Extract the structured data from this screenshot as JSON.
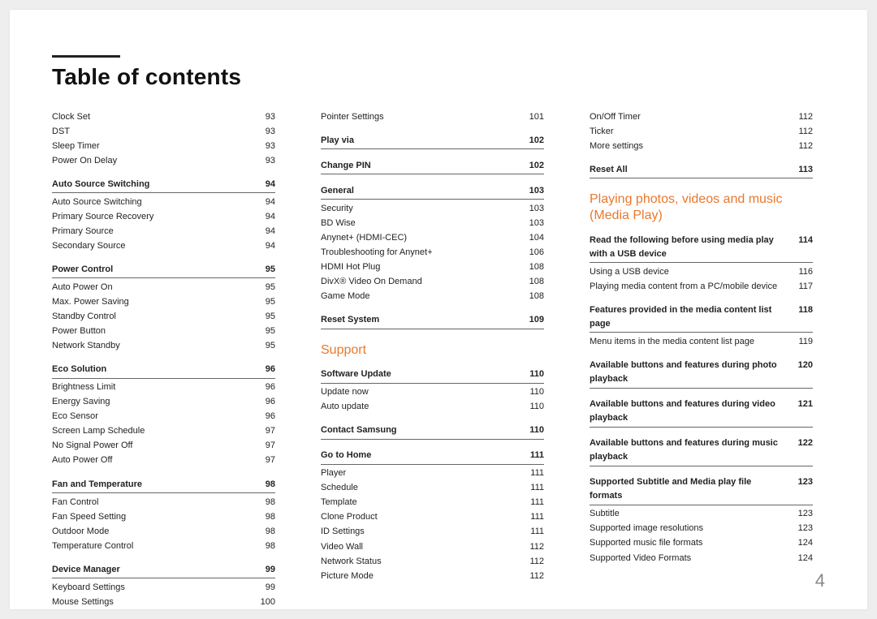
{
  "title": "Table of contents",
  "pageNumber": "4",
  "columns": {
    "col1": {
      "plainRows": [
        {
          "label": "Clock Set",
          "page": "93"
        },
        {
          "label": "DST",
          "page": "93"
        },
        {
          "label": "Sleep Timer",
          "page": "93"
        },
        {
          "label": "Power On Delay",
          "page": "93"
        }
      ],
      "groups": [
        {
          "head": "Auto Source Switching",
          "page": "94",
          "rows": [
            {
              "label": "Auto Source Switching",
              "page": "94"
            },
            {
              "label": "Primary Source Recovery",
              "page": "94"
            },
            {
              "label": "Primary Source",
              "page": "94"
            },
            {
              "label": "Secondary Source",
              "page": "94"
            }
          ]
        },
        {
          "head": "Power Control",
          "page": "95",
          "rows": [
            {
              "label": "Auto Power On",
              "page": "95"
            },
            {
              "label": "Max. Power Saving",
              "page": "95"
            },
            {
              "label": "Standby Control",
              "page": "95"
            },
            {
              "label": "Power Button",
              "page": "95"
            },
            {
              "label": "Network Standby",
              "page": "95"
            }
          ]
        },
        {
          "head": "Eco Solution",
          "page": "96",
          "rows": [
            {
              "label": "Brightness Limit",
              "page": "96"
            },
            {
              "label": "Energy Saving",
              "page": "96"
            },
            {
              "label": "Eco Sensor",
              "page": "96"
            },
            {
              "label": "Screen Lamp Schedule",
              "page": "97"
            },
            {
              "label": "No Signal Power Off",
              "page": "97"
            },
            {
              "label": "Auto Power Off",
              "page": "97"
            }
          ]
        },
        {
          "head": "Fan and Temperature",
          "page": "98",
          "rows": [
            {
              "label": "Fan Control",
              "page": "98"
            },
            {
              "label": "Fan Speed Setting",
              "page": "98"
            },
            {
              "label": "Outdoor Mode",
              "page": "98"
            },
            {
              "label": "Temperature Control",
              "page": "98"
            }
          ]
        },
        {
          "head": "Device Manager",
          "page": "99",
          "rows": [
            {
              "label": "Keyboard Settings",
              "page": "99"
            },
            {
              "label": "Mouse Settings",
              "page": "100"
            }
          ]
        }
      ]
    },
    "col2": {
      "plainRows": [
        {
          "label": "Pointer Settings",
          "page": "101"
        }
      ],
      "groups": [
        {
          "head": "Play via",
          "page": "102",
          "rows": []
        },
        {
          "head": "Change PIN",
          "page": "102",
          "rows": []
        },
        {
          "head": "General",
          "page": "103",
          "rows": [
            {
              "label": "Security",
              "page": "103"
            },
            {
              "label": "BD Wise",
              "page": "103"
            },
            {
              "label": "Anynet+ (HDMI-CEC)",
              "page": "104"
            },
            {
              "label": "Troubleshooting for Anynet+",
              "page": "106"
            },
            {
              "label": "HDMI Hot Plug",
              "page": "108"
            },
            {
              "label": "DivX® Video On Demand",
              "page": "108"
            },
            {
              "label": "Game Mode",
              "page": "108"
            }
          ]
        },
        {
          "head": "Reset System",
          "page": "109",
          "rows": []
        }
      ],
      "sectionTitle": "Support",
      "groups2": [
        {
          "head": "Software Update",
          "page": "110",
          "rows": [
            {
              "label": "Update now",
              "page": "110"
            },
            {
              "label": "Auto update",
              "page": "110"
            }
          ]
        },
        {
          "head": "Contact Samsung",
          "page": "110",
          "rows": []
        },
        {
          "head": "Go to Home",
          "page": "111",
          "rows": [
            {
              "label": "Player",
              "page": "111"
            },
            {
              "label": "Schedule",
              "page": "111"
            },
            {
              "label": "Template",
              "page": "111"
            },
            {
              "label": "Clone Product",
              "page": "111"
            },
            {
              "label": "ID Settings",
              "page": "111"
            },
            {
              "label": "Video Wall",
              "page": "112"
            },
            {
              "label": "Network Status",
              "page": "112"
            },
            {
              "label": "Picture Mode",
              "page": "112"
            }
          ]
        }
      ]
    },
    "col3": {
      "plainRows": [
        {
          "label": "On/Off Timer",
          "page": "112"
        },
        {
          "label": "Ticker",
          "page": "112"
        },
        {
          "label": "More settings",
          "page": "112"
        }
      ],
      "groups": [
        {
          "head": "Reset All",
          "page": "113",
          "rows": []
        }
      ],
      "sectionTitle": "Playing photos, videos and music (Media Play)",
      "groups2": [
        {
          "head": "Read the following before using media play with a USB device",
          "page": "114",
          "rows": [
            {
              "label": "Using a USB device",
              "page": "116"
            },
            {
              "label": "Playing media content from a PC/mobile device",
              "page": "117"
            }
          ]
        },
        {
          "head": "Features provided in the media content list page",
          "page": "118",
          "rows": [
            {
              "label": "Menu items in the media content list page",
              "page": "119"
            }
          ]
        },
        {
          "head": "Available buttons and features during photo playback",
          "page": "120",
          "rows": []
        },
        {
          "head": "Available buttons and features during video playback",
          "page": "121",
          "rows": []
        },
        {
          "head": "Available buttons and features during music playback",
          "page": "122",
          "rows": []
        },
        {
          "head": "Supported Subtitle and Media play file formats",
          "page": "123",
          "rows": [
            {
              "label": "Subtitle",
              "page": "123"
            },
            {
              "label": "Supported image resolutions",
              "page": "123"
            },
            {
              "label": "Supported music file formats",
              "page": "124"
            },
            {
              "label": "Supported Video Formats",
              "page": "124"
            }
          ]
        }
      ]
    }
  }
}
